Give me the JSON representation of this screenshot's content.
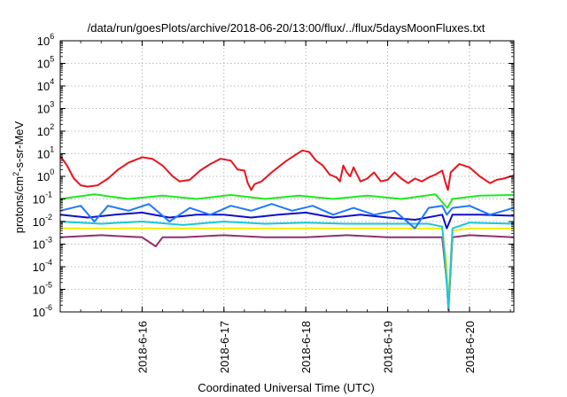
{
  "chart_data": {
    "type": "line",
    "title": "/data/run/goesPlots/archive/2018-06-20/13:00/flux/../flux/5daysMoonFluxes.txt",
    "xlabel": "Coordinated Universal Time (UTC)",
    "ylabel_parts": [
      "protons/cm",
      "2",
      "-s-sr-MeV"
    ],
    "y_scale": "log",
    "ylim": [
      1e-06,
      1000000.0
    ],
    "y_ticks": [
      {
        "value": 1e-06,
        "base": "10",
        "exp": "-6"
      },
      {
        "value": 1e-05,
        "base": "10",
        "exp": "-5"
      },
      {
        "value": 0.0001,
        "base": "10",
        "exp": "-4"
      },
      {
        "value": 0.001,
        "base": "10",
        "exp": "-3"
      },
      {
        "value": 0.01,
        "base": "10",
        "exp": "-2"
      },
      {
        "value": 0.1,
        "base": "10",
        "exp": "-1"
      },
      {
        "value": 1,
        "base": "10",
        "exp": "0"
      },
      {
        "value": 10,
        "base": "10",
        "exp": "1"
      },
      {
        "value": 100,
        "base": "10",
        "exp": "2"
      },
      {
        "value": 1000,
        "base": "10",
        "exp": "3"
      },
      {
        "value": 10000,
        "base": "10",
        "exp": "4"
      },
      {
        "value": 100000,
        "base": "10",
        "exp": "5"
      },
      {
        "value": 1000000,
        "base": "10",
        "exp": "6"
      }
    ],
    "xlim": [
      "2018-06-15",
      "2018-06-20T13:00"
    ],
    "x_ticks": [
      {
        "value": "2018-06-16",
        "label": "2018-6-16"
      },
      {
        "value": "2018-06-17",
        "label": "2018-6-17"
      },
      {
        "value": "2018-06-18",
        "label": "2018-6-18"
      },
      {
        "value": "2018-06-19",
        "label": "2018-6-19"
      },
      {
        "value": "2018-06-20",
        "label": "2018-6-20"
      }
    ],
    "grid": true,
    "series": [
      {
        "color": "#e8141c",
        "points": [
          [
            "2018-06-15T00:00",
            8
          ],
          [
            "2018-06-15T02:00",
            3
          ],
          [
            "2018-06-15T04:00",
            0.8
          ],
          [
            "2018-06-15T06:00",
            0.4
          ],
          [
            "2018-06-15T08:00",
            0.35
          ],
          [
            "2018-06-15T11:00",
            0.4
          ],
          [
            "2018-06-15T14:00",
            0.8
          ],
          [
            "2018-06-15T17:00",
            2
          ],
          [
            "2018-06-15T20:00",
            4
          ],
          [
            "2018-06-16T00:00",
            7
          ],
          [
            "2018-06-16T03:00",
            6
          ],
          [
            "2018-06-16T06:00",
            3
          ],
          [
            "2018-06-16T09:00",
            1
          ],
          [
            "2018-06-16T11:00",
            0.6
          ],
          [
            "2018-06-16T14:00",
            0.7
          ],
          [
            "2018-06-16T17:00",
            1.8
          ],
          [
            "2018-06-16T20:00",
            3.5
          ],
          [
            "2018-06-16T23:00",
            6
          ],
          [
            "2018-06-17T02:00",
            5
          ],
          [
            "2018-06-17T04:00",
            2
          ],
          [
            "2018-06-17T06:00",
            1.8
          ],
          [
            "2018-06-17T07:00",
            0.5
          ],
          [
            "2018-06-17T08:00",
            0.25
          ],
          [
            "2018-06-17T09:00",
            0.45
          ],
          [
            "2018-06-17T11:00",
            0.6
          ],
          [
            "2018-06-17T14:00",
            1.5
          ],
          [
            "2018-06-17T18:00",
            4.5
          ],
          [
            "2018-06-17T21:00",
            9
          ],
          [
            "2018-06-17T23:00",
            14
          ],
          [
            "2018-06-18T01:00",
            12
          ],
          [
            "2018-06-18T03:00",
            5
          ],
          [
            "2018-06-18T05:00",
            3
          ],
          [
            "2018-06-18T07:00",
            1.2
          ],
          [
            "2018-06-18T09:00",
            0.9
          ],
          [
            "2018-06-18T10:00",
            0.6
          ],
          [
            "2018-06-18T11:00",
            3
          ],
          [
            "2018-06-18T12:00",
            1.5
          ],
          [
            "2018-06-18T13:00",
            1
          ],
          [
            "2018-06-18T14:00",
            2.5
          ],
          [
            "2018-06-18T16:00",
            0.6
          ],
          [
            "2018-06-18T18:00",
            0.8
          ],
          [
            "2018-06-18T20:00",
            1.5
          ],
          [
            "2018-06-18T22:00",
            0.6
          ],
          [
            "2018-06-19T00:00",
            0.7
          ],
          [
            "2018-06-19T02:00",
            1.5
          ],
          [
            "2018-06-19T04:00",
            0.8
          ],
          [
            "2018-06-19T06:00",
            0.5
          ],
          [
            "2018-06-19T08:00",
            0.8
          ],
          [
            "2018-06-19T10:00",
            0.6
          ],
          [
            "2018-06-19T12:00",
            0.9
          ],
          [
            "2018-06-19T14:00",
            1.2
          ],
          [
            "2018-06-19T16:00",
            1.8
          ],
          [
            "2018-06-19T17:00",
            0.5
          ],
          [
            "2018-06-19T17:40",
            0.25
          ],
          [
            "2018-06-19T18:30",
            1.5
          ],
          [
            "2018-06-19T21:00",
            3.5
          ],
          [
            "2018-06-20T00:00",
            2.5
          ],
          [
            "2018-06-20T03:00",
            1
          ],
          [
            "2018-06-20T06:00",
            0.5
          ],
          [
            "2018-06-20T08:00",
            0.7
          ],
          [
            "2018-06-20T10:00",
            0.8
          ],
          [
            "2018-06-20T13:00",
            1.1
          ]
        ]
      },
      {
        "color": "#1fe81f",
        "points": [
          [
            "2018-06-15T00:00",
            0.1
          ],
          [
            "2018-06-15T10:00",
            0.16
          ],
          [
            "2018-06-15T20:00",
            0.1
          ],
          [
            "2018-06-16T06:00",
            0.14
          ],
          [
            "2018-06-16T16:00",
            0.1
          ],
          [
            "2018-06-17T02:00",
            0.15
          ],
          [
            "2018-06-17T12:00",
            0.1
          ],
          [
            "2018-06-17T22:00",
            0.14
          ],
          [
            "2018-06-18T08:00",
            0.1
          ],
          [
            "2018-06-18T18:00",
            0.14
          ],
          [
            "2018-06-19T04:00",
            0.1
          ],
          [
            "2018-06-19T14:00",
            0.16
          ],
          [
            "2018-06-19T17:30",
            0.04
          ],
          [
            "2018-06-19T19:00",
            0.1
          ],
          [
            "2018-06-20T03:00",
            0.14
          ],
          [
            "2018-06-20T13:00",
            0.15
          ]
        ]
      },
      {
        "color": "#1f78ff",
        "points": [
          [
            "2018-06-15T00:00",
            0.03
          ],
          [
            "2018-06-15T06:00",
            0.05
          ],
          [
            "2018-06-15T10:00",
            0.01
          ],
          [
            "2018-06-15T14:00",
            0.05
          ],
          [
            "2018-06-15T20:00",
            0.03
          ],
          [
            "2018-06-16T02:00",
            0.06
          ],
          [
            "2018-06-16T08:00",
            0.01
          ],
          [
            "2018-06-16T14:00",
            0.04
          ],
          [
            "2018-06-16T20:00",
            0.02
          ],
          [
            "2018-06-17T02:00",
            0.05
          ],
          [
            "2018-06-17T08:00",
            0.03
          ],
          [
            "2018-06-17T14:00",
            0.06
          ],
          [
            "2018-06-17T20:00",
            0.03
          ],
          [
            "2018-06-18T02:00",
            0.05
          ],
          [
            "2018-06-18T08:00",
            0.02
          ],
          [
            "2018-06-18T14:00",
            0.04
          ],
          [
            "2018-06-18T20:00",
            0.02
          ],
          [
            "2018-06-19T02:00",
            0.03
          ],
          [
            "2018-06-19T08:00",
            0.005
          ],
          [
            "2018-06-19T12:00",
            0.04
          ],
          [
            "2018-06-19T16:00",
            0.05
          ],
          [
            "2018-06-19T17:20",
            0.02
          ],
          [
            "2018-06-19T19:00",
            0.04
          ],
          [
            "2018-06-20T00:00",
            0.05
          ],
          [
            "2018-06-20T06:00",
            0.02
          ],
          [
            "2018-06-20T13:00",
            0.04
          ]
        ]
      },
      {
        "color": "#18c8d8",
        "points": [
          [
            "2018-06-15T00:00",
            0.01
          ],
          [
            "2018-06-15T12:00",
            0.008
          ],
          [
            "2018-06-16T00:00",
            0.01
          ],
          [
            "2018-06-16T12:00",
            0.007
          ],
          [
            "2018-06-17T00:00",
            0.01
          ],
          [
            "2018-06-17T12:00",
            0.008
          ],
          [
            "2018-06-18T00:00",
            0.009
          ],
          [
            "2018-06-18T12:00",
            0.008
          ],
          [
            "2018-06-19T00:00",
            0.008
          ],
          [
            "2018-06-19T12:00",
            0.008
          ],
          [
            "2018-06-19T16:00",
            0.006
          ],
          [
            "2018-06-19T17:20",
            2e-05
          ],
          [
            "2018-06-19T17:50",
            1.5e-06
          ],
          [
            "2018-06-19T19:00",
            0.005
          ],
          [
            "2018-06-20T00:00",
            0.009
          ],
          [
            "2018-06-20T13:00",
            0.008
          ]
        ]
      },
      {
        "color": "#1010c8",
        "points": [
          [
            "2018-06-15T00:00",
            0.02
          ],
          [
            "2018-06-15T08:00",
            0.015
          ],
          [
            "2018-06-15T16:00",
            0.02
          ],
          [
            "2018-06-16T00:00",
            0.025
          ],
          [
            "2018-06-16T08:00",
            0.015
          ],
          [
            "2018-06-16T16:00",
            0.02
          ],
          [
            "2018-06-17T00:00",
            0.02
          ],
          [
            "2018-06-17T08:00",
            0.015
          ],
          [
            "2018-06-17T16:00",
            0.02
          ],
          [
            "2018-06-18T00:00",
            0.025
          ],
          [
            "2018-06-18T08:00",
            0.015
          ],
          [
            "2018-06-18T16:00",
            0.02
          ],
          [
            "2018-06-19T00:00",
            0.015
          ],
          [
            "2018-06-19T08:00",
            0.012
          ],
          [
            "2018-06-19T16:00",
            0.02
          ],
          [
            "2018-06-19T17:20",
            0.005
          ],
          [
            "2018-06-19T19:00",
            0.02
          ],
          [
            "2018-06-20T03:00",
            0.02
          ],
          [
            "2018-06-20T13:00",
            0.018
          ]
        ]
      },
      {
        "color": "#f0f000",
        "points": [
          [
            "2018-06-15T00:00",
            0.005
          ],
          [
            "2018-06-16T00:00",
            0.005
          ],
          [
            "2018-06-17T00:00",
            0.005
          ],
          [
            "2018-06-18T00:00",
            0.005
          ],
          [
            "2018-06-19T00:00",
            0.005
          ],
          [
            "2018-06-19T16:00",
            0.005
          ],
          [
            "2018-06-19T17:20",
            0.0001
          ],
          [
            "2018-06-19T17:50",
            2e-06
          ],
          [
            "2018-06-19T19:00",
            0.004
          ],
          [
            "2018-06-20T00:00",
            0.005
          ],
          [
            "2018-06-20T13:00",
            0.005
          ]
        ]
      },
      {
        "color": "#903070",
        "points": [
          [
            "2018-06-15T00:00",
            0.002
          ],
          [
            "2018-06-15T12:00",
            0.0025
          ],
          [
            "2018-06-16T00:00",
            0.002
          ],
          [
            "2018-06-16T04:00",
            0.0008
          ],
          [
            "2018-06-16T06:00",
            0.002
          ],
          [
            "2018-06-16T12:00",
            0.002
          ],
          [
            "2018-06-17T00:00",
            0.0025
          ],
          [
            "2018-06-17T12:00",
            0.002
          ],
          [
            "2018-06-18T00:00",
            0.002
          ],
          [
            "2018-06-18T12:00",
            0.0025
          ],
          [
            "2018-06-19T00:00",
            0.002
          ],
          [
            "2018-06-19T12:00",
            0.002
          ],
          [
            "2018-06-19T16:00",
            0.002
          ],
          [
            "2018-06-19T17:20",
            2e-05
          ],
          [
            "2018-06-19T17:50",
            1.2e-06
          ],
          [
            "2018-06-19T19:00",
            0.002
          ],
          [
            "2018-06-20T00:00",
            0.0025
          ],
          [
            "2018-06-20T13:00",
            0.002
          ]
        ]
      }
    ]
  }
}
